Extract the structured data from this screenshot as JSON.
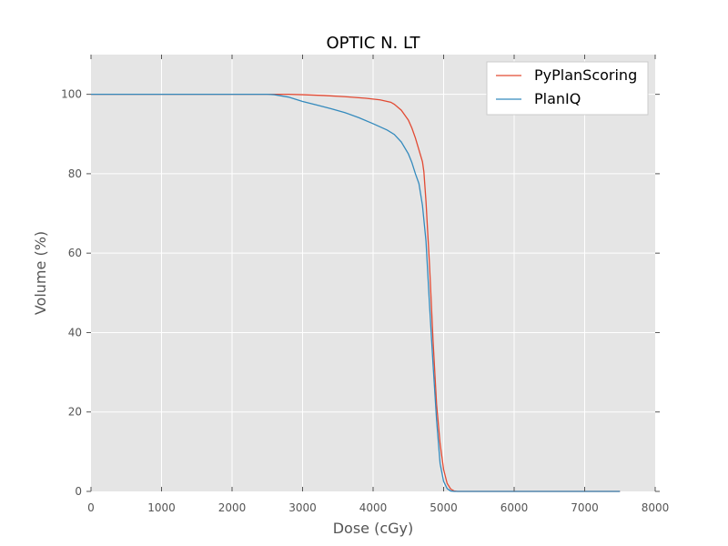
{
  "chart_data": {
    "type": "line",
    "title": "OPTIC N. LT",
    "xlabel": "Dose (cGy)",
    "ylabel": "Volume (%)",
    "xlim": [
      0,
      8000
    ],
    "ylim": [
      0,
      110
    ],
    "xticks": [
      0,
      1000,
      2000,
      3000,
      4000,
      5000,
      6000,
      7000,
      8000
    ],
    "yticks": [
      0,
      20,
      40,
      60,
      80,
      100
    ],
    "grid": true,
    "background": "#e5e5e5",
    "grid_color": "#ffffff",
    "legend_position": "top-right",
    "series": [
      {
        "name": "PyPlanScoring",
        "color": "#e24a33",
        "x": [
          0,
          2000,
          2500,
          2800,
          3000,
          3300,
          3600,
          3900,
          4100,
          4250,
          4300,
          4400,
          4500,
          4550,
          4600,
          4650,
          4700,
          4720,
          4750,
          4800,
          4850,
          4900,
          4950,
          5000,
          5050,
          5100,
          5150,
          5200,
          7500
        ],
        "y": [
          100,
          100,
          100,
          100,
          99.9,
          99.7,
          99.4,
          99.0,
          98.6,
          98.0,
          97.5,
          96.0,
          93.5,
          91.5,
          89.0,
          86.0,
          83.0,
          80.5,
          73.0,
          57.0,
          38.0,
          22.0,
          12.0,
          5.5,
          2.0,
          0.6,
          0.1,
          0,
          0
        ]
      },
      {
        "name": "PlanIQ",
        "color": "#348abd",
        "x": [
          0,
          2500,
          2600,
          2800,
          3000,
          3200,
          3400,
          3600,
          3800,
          4000,
          4200,
          4300,
          4400,
          4500,
          4550,
          4600,
          4650,
          4700,
          4750,
          4800,
          4850,
          4900,
          4950,
          5000,
          5050,
          5100,
          5150,
          7500
        ],
        "y": [
          100,
          100,
          99.9,
          99.3,
          98.2,
          97.3,
          96.4,
          95.4,
          94.1,
          92.6,
          91.0,
          89.9,
          88.0,
          85.0,
          82.8,
          80.0,
          77.5,
          72.0,
          63.0,
          47.0,
          32.0,
          18.0,
          7.0,
          2.5,
          0.7,
          0.1,
          0,
          0
        ]
      }
    ]
  }
}
